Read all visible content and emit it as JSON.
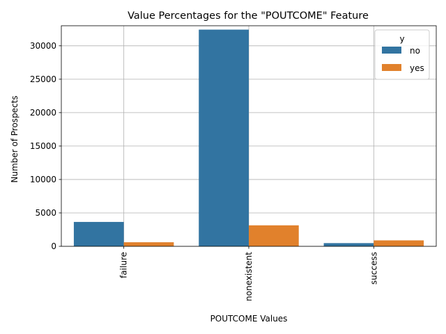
{
  "chart_data": {
    "type": "bar",
    "title": "Value Percentages for the \"POUTCOME\" Feature",
    "xlabel": "POUTCOME Values",
    "ylabel": "Number of Prospects",
    "categories": [
      "failure",
      "nonexistent",
      "success"
    ],
    "series": [
      {
        "name": "no",
        "values": [
          3650,
          32420,
          480
        ],
        "color": "#3274a1"
      },
      {
        "name": "yes",
        "values": [
          610,
          3140,
          890
        ],
        "color": "#e1812c"
      }
    ],
    "ylim": [
      0,
      33000
    ],
    "yticks": [
      0,
      5000,
      10000,
      15000,
      20000,
      25000,
      30000
    ],
    "grid": true,
    "legend": {
      "title": "y",
      "position": "top-right"
    }
  }
}
